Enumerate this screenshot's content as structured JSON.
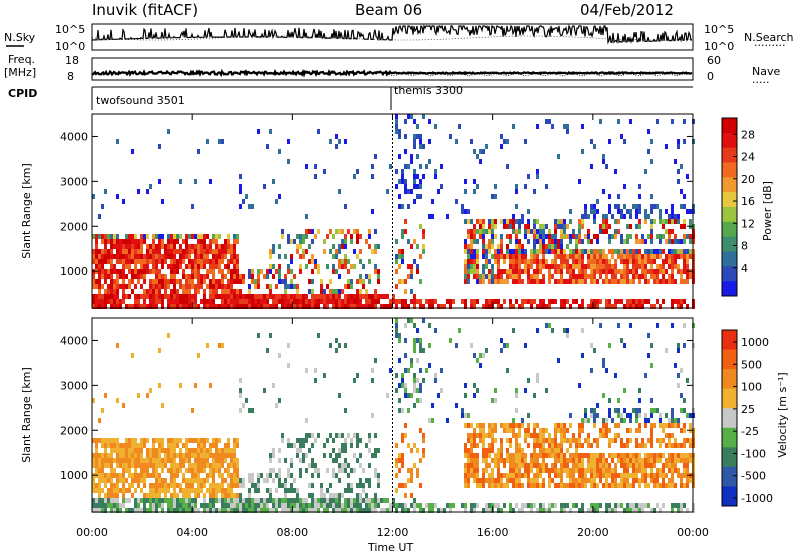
{
  "header": {
    "station": "Inuvik (fitACF)",
    "beam": "Beam 06",
    "date": "04/Feb/2012"
  },
  "params": {
    "nsky_label": "N.Sky",
    "nsearch_label": "N.Search",
    "nsearch_legend": "·········",
    "noise_ticks_left": [
      "10^5",
      "10^0"
    ],
    "noise_ticks_right": [
      "10^5",
      "10^0"
    ],
    "freq_label_1": "Freq.",
    "freq_label_2": "[MHz]",
    "freq_ticks": [
      "18",
      "8"
    ],
    "nave_label": "Nave",
    "nave_legend": "·····",
    "nave_ticks": [
      "60",
      "0"
    ],
    "cpid_label": "CPID",
    "modes": [
      {
        "name": "twofsound 3501",
        "start_hour": 0
      },
      {
        "name": "themis 3300",
        "start_hour": 12
      }
    ]
  },
  "chart_data": [
    {
      "type": "heatmap",
      "name": "power",
      "ylabel": "Slant Range [km]",
      "xlabel": "",
      "ylim": [
        180,
        4500
      ],
      "yticks": [
        "1000",
        "2000",
        "3000",
        "4000"
      ],
      "xlim": [
        0,
        24
      ],
      "colorbar": {
        "label": "Power [dB]",
        "ticks": [
          "4",
          "8",
          "12",
          "16",
          "20",
          "24",
          "28"
        ],
        "colors": [
          "#1a1ae6",
          "#2b49b8",
          "#2f6f9a",
          "#3e8e6e",
          "#55a84f",
          "#9bc53f",
          "#e6c840",
          "#f09a30",
          "#f06a20",
          "#e63a1a",
          "#e01010",
          "#d00000"
        ]
      }
    },
    {
      "type": "heatmap",
      "name": "velocity",
      "ylabel": "Slant Range [km]",
      "xlabel": "Time UT",
      "ylim": [
        180,
        4500
      ],
      "yticks": [
        "1000",
        "2000",
        "3000",
        "4000"
      ],
      "xlim": [
        0,
        24
      ],
      "xticks": [
        "00:00",
        "04:00",
        "08:00",
        "12:00",
        "16:00",
        "20:00",
        "00:00"
      ],
      "colorbar": {
        "label": "Velocity [m s⁻¹]",
        "ticks": [
          "1000",
          "500",
          "100",
          "25",
          "-25",
          "-100",
          "-500",
          "-1000"
        ],
        "colors": [
          "#1030c0",
          "#2f58a8",
          "#3a7d5c",
          "#56b047",
          "#c8c8c8",
          "#f0b030",
          "#f08a20",
          "#f06010",
          "#e83010"
        ]
      }
    }
  ]
}
